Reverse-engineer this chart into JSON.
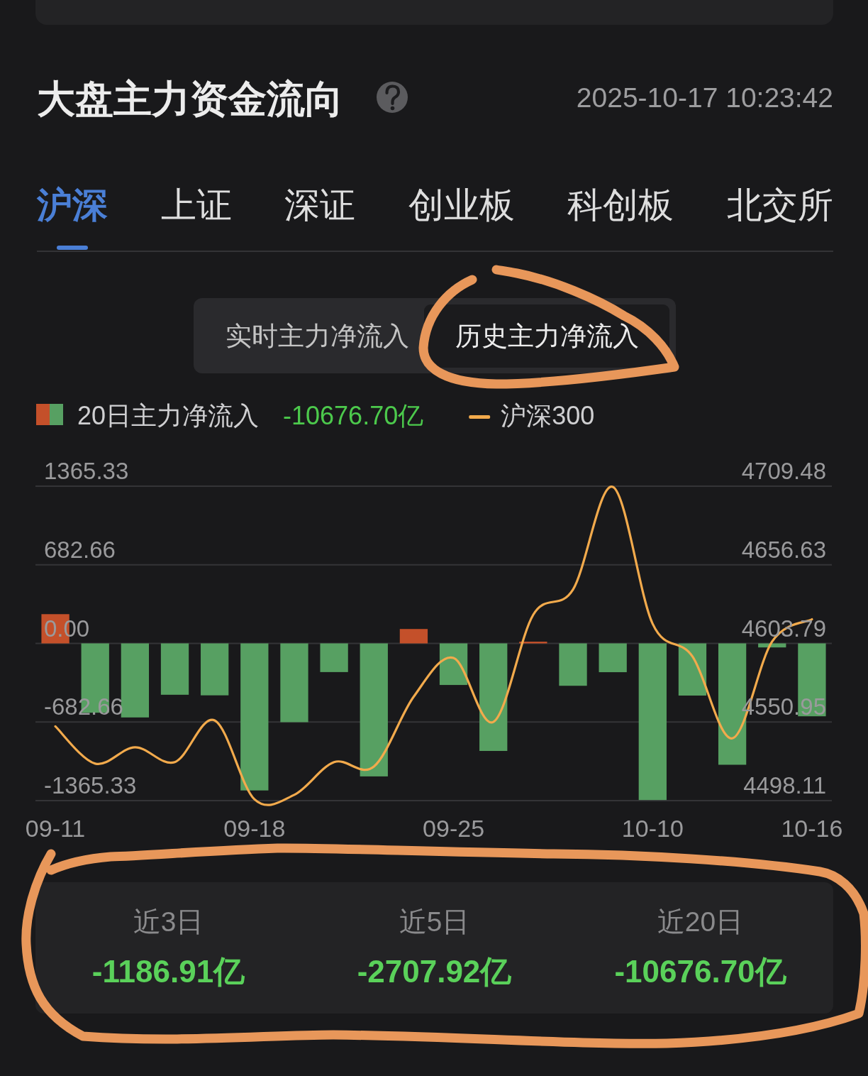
{
  "chart_data": [
    {
      "type": "bar",
      "title": "大盘主力资金流向",
      "annotations": [
        "2025-10-17 10:23:42",
        "沪深",
        "上证",
        "深证",
        "创业板",
        "科创板",
        "北交所",
        "实时主力净流入",
        "历史主力净流入",
        "-10676.70亿"
      ],
      "categories": [
        "09-11",
        null,
        null,
        null,
        null,
        "09-18",
        null,
        null,
        null,
        null,
        "09-25",
        null,
        null,
        null,
        null,
        "10-10",
        null,
        null,
        null,
        "10-16"
      ],
      "series": [
        {
          "name": "20日主力净流入",
          "type": "bar",
          "colors": [
            "#c4502a",
            "#57a062",
            "#57a062",
            "#57a062",
            "#57a062",
            "#57a062",
            "#57a062",
            "#57a062",
            "#57a062",
            "#c4502a",
            "#57a062",
            "#57a062",
            "#c4502a",
            "#57a062",
            "#57a062",
            "#57a062",
            "#57a062",
            "#57a062",
            "#57a062",
            "#57a062"
          ],
          "values": [
            254,
            -602,
            -643,
            -446,
            -451,
            -1277,
            -684,
            -249,
            -1155,
            125,
            -361,
            -934,
            15,
            -368,
            -250,
            -1360,
            -453,
            -1054,
            -35,
            -633
          ]
        },
        {
          "name": "沪深300",
          "type": "line",
          "axis": "y2",
          "color": "#f2aa4c",
          "values": [
            4548,
            4523,
            4534,
            4524,
            4552,
            4499,
            4502,
            4524,
            4521,
            4568,
            4594,
            4551,
            4623,
            4640,
            4709,
            4617,
            4595,
            4540,
            4605,
            4620
          ]
        }
      ],
      "ylim": [
        -1365.33,
        1365.33
      ],
      "yticks": [
        1365.33,
        682.66,
        {
          "value": 0,
          "label": "0.00"
        },
        -682.66,
        -1365.33
      ],
      "y2lim": [
        4498.11,
        4709.48
      ],
      "y2ticks": [
        4709.48,
        4656.63,
        4603.79,
        4550.95,
        4498.11
      ],
      "grid": "y",
      "legend": "top left"
    },
    {
      "type": "other",
      "annotations": [
        "近3日",
        "-1186.91亿",
        "近5日",
        "-2707.92亿",
        "近20日",
        "-10676.70亿"
      ]
    }
  ]
}
